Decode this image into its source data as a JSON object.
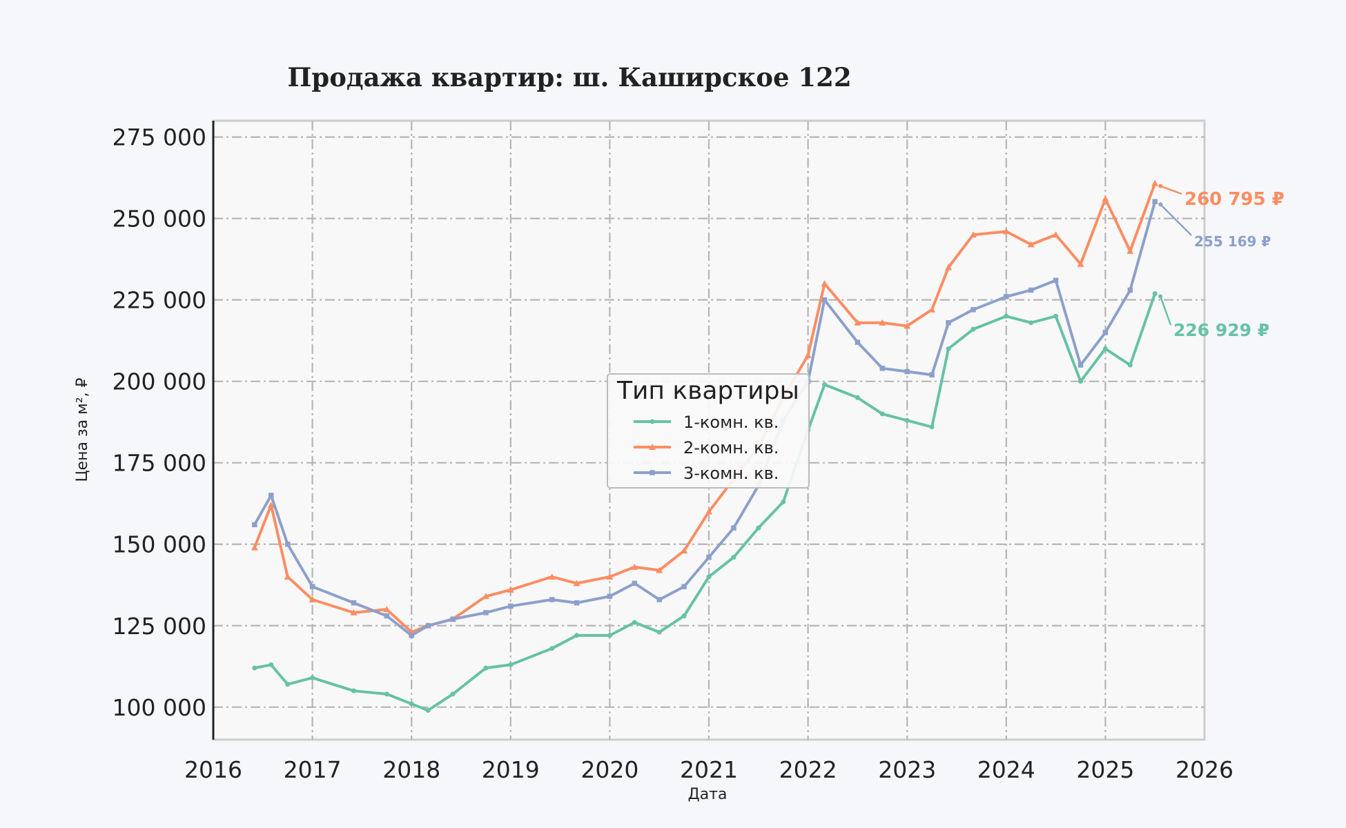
{
  "chart_data": {
    "type": "line",
    "title": "Продажа квартир: ш. Каширское 122",
    "xlabel": "Дата",
    "ylabel": "Цена за м², ₽",
    "xlim": [
      "2016-01-01",
      "2026-01-01"
    ],
    "ylim": [
      90000,
      280000
    ],
    "x_ticks": [
      "2016",
      "2017",
      "2018",
      "2019",
      "2020",
      "2021",
      "2022",
      "2023",
      "2024",
      "2025",
      "2026"
    ],
    "y_ticks": [
      "100 000",
      "125 000",
      "150 000",
      "175 000",
      "200 000",
      "225 000",
      "250 000",
      "275 000"
    ],
    "grid": true,
    "legend": {
      "title": "Тип квартиры",
      "position": "center"
    },
    "series": [
      {
        "name": "1-комн. кв.",
        "color": "#66c2a5",
        "marker": "circle",
        "x": [
          "2016-06",
          "2016-08",
          "2016-10",
          "2017-01",
          "2017-06",
          "2017-10",
          "2018-01",
          "2018-03",
          "2018-06",
          "2018-10",
          "2019-01",
          "2019-06",
          "2019-09",
          "2020-01",
          "2020-04",
          "2020-07",
          "2020-10",
          "2021-01",
          "2021-04",
          "2021-07",
          "2021-10",
          "2022-01",
          "2022-03",
          "2022-07",
          "2022-10",
          "2023-01",
          "2023-04",
          "2023-06",
          "2023-09",
          "2024-01",
          "2024-04",
          "2024-07",
          "2024-10",
          "2025-01",
          "2025-04",
          "2025-07"
        ],
        "values": [
          112000,
          113000,
          107000,
          109000,
          105000,
          104000,
          101000,
          99000,
          104000,
          112000,
          113000,
          118000,
          122000,
          122000,
          126000,
          123000,
          128000,
          140000,
          146000,
          155000,
          163000,
          185000,
          199000,
          195000,
          190000,
          188000,
          186000,
          210000,
          216000,
          220000,
          218000,
          220000,
          200000,
          210000,
          205000,
          226929
        ]
      },
      {
        "name": "2-комн. кв.",
        "color": "#fc8d62",
        "marker": "triangle",
        "x": [
          "2016-06",
          "2016-08",
          "2016-10",
          "2017-01",
          "2017-06",
          "2017-10",
          "2018-01",
          "2018-03",
          "2018-06",
          "2018-10",
          "2019-01",
          "2019-06",
          "2019-09",
          "2020-01",
          "2020-04",
          "2020-07",
          "2020-10",
          "2021-01",
          "2021-04",
          "2021-07",
          "2021-10",
          "2022-01",
          "2022-03",
          "2022-07",
          "2022-10",
          "2023-01",
          "2023-04",
          "2023-06",
          "2023-09",
          "2024-01",
          "2024-04",
          "2024-07",
          "2024-10",
          "2025-01",
          "2025-04",
          "2025-07"
        ],
        "values": [
          149000,
          162000,
          140000,
          133000,
          129000,
          130000,
          123000,
          125000,
          127000,
          134000,
          136000,
          140000,
          138000,
          140000,
          143000,
          142000,
          148000,
          160000,
          170000,
          180000,
          195000,
          208000,
          230000,
          218000,
          218000,
          217000,
          222000,
          235000,
          245000,
          246000,
          242000,
          245000,
          236000,
          256000,
          240000,
          260795
        ]
      },
      {
        "name": "3-комн. кв.",
        "color": "#8da0cb",
        "marker": "square",
        "x": [
          "2016-06",
          "2016-08",
          "2016-10",
          "2017-01",
          "2017-06",
          "2017-10",
          "2018-01",
          "2018-03",
          "2018-06",
          "2018-10",
          "2019-01",
          "2019-06",
          "2019-09",
          "2020-01",
          "2020-04",
          "2020-07",
          "2020-10",
          "2021-01",
          "2021-04",
          "2021-07",
          "2021-10",
          "2022-01",
          "2022-03",
          "2022-07",
          "2022-10",
          "2023-01",
          "2023-04",
          "2023-06",
          "2023-09",
          "2024-01",
          "2024-04",
          "2024-07",
          "2024-10",
          "2025-01",
          "2025-04",
          "2025-07"
        ],
        "values": [
          156000,
          165000,
          150000,
          137000,
          132000,
          128000,
          122000,
          125000,
          127000,
          129000,
          131000,
          133000,
          132000,
          134000,
          138000,
          133000,
          137000,
          146000,
          155000,
          168000,
          188000,
          200000,
          225000,
          212000,
          204000,
          203000,
          202000,
          218000,
          222000,
          226000,
          228000,
          231000,
          205000,
          215000,
          228000,
          255169
        ]
      }
    ],
    "annotations": [
      {
        "series": 1,
        "x": "2025-07",
        "label": "260 795 ₽"
      },
      {
        "series": 2,
        "x": "2025-07",
        "label": "255 169 ₽"
      },
      {
        "series": 0,
        "x": "2025-07",
        "label": "226 929 ₽"
      }
    ]
  }
}
